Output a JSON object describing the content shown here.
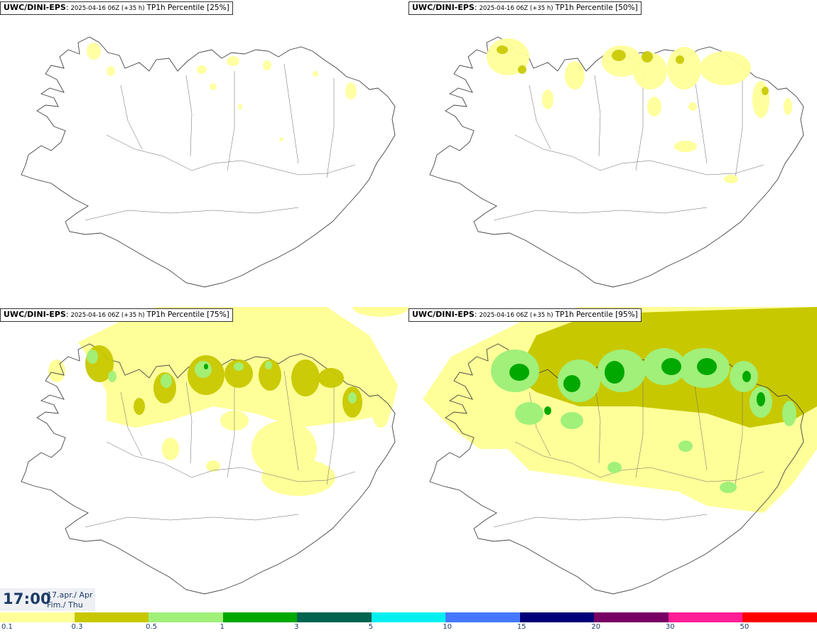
{
  "panels": [
    {
      "model": "UWC/DINI-EPS",
      "run": "2025-04-16 06Z (+35 h)",
      "param": "TP1h Percentile [25%]"
    },
    {
      "model": "UWC/DINI-EPS",
      "run": "2025-04-16 06Z (+35 h)",
      "param": "TP1h Percentile [50%]"
    },
    {
      "model": "UWC/DINI-EPS",
      "run": "2025-04-16 06Z (+35 h)",
      "param": "TP1h Percentile [75%]"
    },
    {
      "model": "UWC/DINI-EPS",
      "run": "2025-04-16 06Z (+35 h)",
      "param": "TP1h Percentile [95%]"
    }
  ],
  "valid_time": {
    "clock": "17:00",
    "date_line1": "17.apr./ Apr",
    "date_line2": "Fim./ Thu"
  },
  "legend": {
    "colors": [
      "#ffff99",
      "#c8c800",
      "#a0f07a",
      "#00a800",
      "#006450",
      "#00f0f0",
      "#4678ff",
      "#000078",
      "#780064",
      "#ff1e96",
      "#ff0000"
    ],
    "ticks": [
      "0.1",
      "0.3",
      "0.5",
      "1",
      "3",
      "5",
      "10",
      "15",
      "20",
      "30",
      "50"
    ]
  }
}
